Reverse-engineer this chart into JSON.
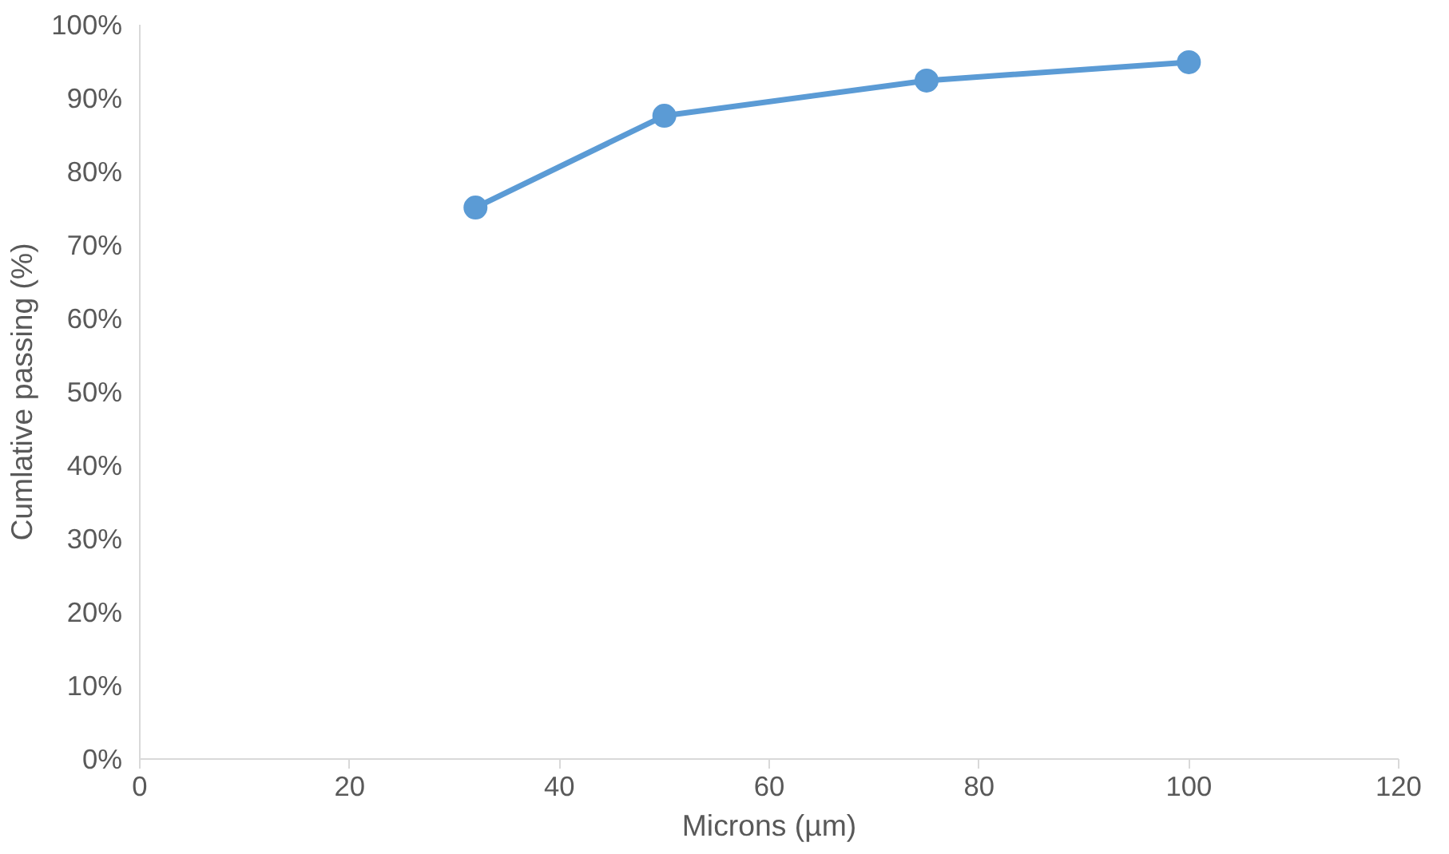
{
  "chart_data": {
    "type": "line",
    "xlabel": "Microns (µm)",
    "ylabel": "Cumlative passing (%)",
    "x": [
      32,
      50,
      75,
      100
    ],
    "series": [
      {
        "color": "#5b9bd5",
        "values": [
          75.1,
          87.6,
          92.4,
          94.9
        ]
      }
    ],
    "xlim": [
      0,
      120
    ],
    "xticks": [
      0,
      20,
      40,
      60,
      80,
      100,
      120
    ],
    "ylim": [
      0,
      100
    ],
    "yticks": [
      {
        "value": 0,
        "label": "0%"
      },
      {
        "value": 10,
        "label": "10%"
      },
      {
        "value": 20,
        "label": "20%"
      },
      {
        "value": 30,
        "label": "30%"
      },
      {
        "value": 40,
        "label": "40%"
      },
      {
        "value": 50,
        "label": "50%"
      },
      {
        "value": 60,
        "label": "60%"
      },
      {
        "value": 70,
        "label": "70%"
      },
      {
        "value": 80,
        "label": "80%"
      },
      {
        "value": 90,
        "label": "90%"
      },
      {
        "value": 100,
        "label": "100%"
      }
    ],
    "grid": false,
    "marker": "circle",
    "line_style": "solid"
  }
}
